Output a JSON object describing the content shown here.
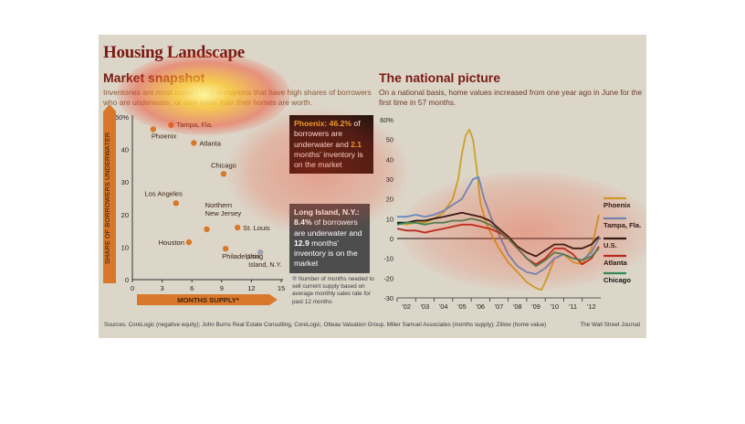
{
  "header": {
    "title": "Housing Landscape",
    "left_subtitle": "Market snapshot",
    "left_intro": "Inventories are most constrained in markets that have high shares of borrowers who are underwater, or owe more than their homes are worth.",
    "right_subtitle": "The national picture",
    "right_intro": "On a national basis, home values increased from one year ago in June for the first time in 57 months."
  },
  "callouts": {
    "phoenix_lead": "Phoenix: 46.2%",
    "phoenix_mid": " of borrowers are underwater and ",
    "phoenix_num": "2.1",
    "phoenix_tail": " months' inventory is on the market",
    "li_lead": "Long Island, N.Y.:",
    "li_num1": "8.4%",
    "li_mid": " of borrowers are underwater and ",
    "li_num2": "12.9",
    "li_tail": " months' inventory is on the market"
  },
  "footnote": "Number of months needed to sell current supply based on average monthly sales rate for past 12 months",
  "source": "Sources: CoreLogic (negative equity); John Burns Real Estate Consulting, CoreLogic, Otteau Valuation Group, Miller Samuel Associates (months supply); Zillow (home value)",
  "credit": "The Wall Street Journal",
  "colors": {
    "title": "#7a1a12",
    "orange": "#d9782a",
    "gray_point": "#9fa4ac",
    "phoenix": "#c9a227",
    "tampa": "#5b8fc9",
    "us": "#111111",
    "atlanta": "#b2261b",
    "chicago": "#2e8a5a"
  },
  "chart_data": [
    {
      "type": "scatter",
      "title": "Market snapshot",
      "xlabel": "MONTHS SUPPLY*",
      "ylabel": "SHARE OF BORROWERS UNDERWATER",
      "xlim": [
        0,
        15
      ],
      "ylim": [
        0,
        50
      ],
      "x_ticks": [
        "0",
        "3",
        "6",
        "9",
        "12",
        "15"
      ],
      "y_ticks": [
        "0",
        "10",
        "20",
        "30",
        "40",
        "50%"
      ],
      "points": [
        {
          "label": "Phoenix",
          "x": 2.1,
          "y": 46.2,
          "color": "orange"
        },
        {
          "label": "Tampa, Fla.",
          "x": 3.9,
          "y": 47.5,
          "color": "orange"
        },
        {
          "label": "Atlanta",
          "x": 6.2,
          "y": 42.0,
          "color": "orange"
        },
        {
          "label": "Chicago",
          "x": 9.2,
          "y": 32.5,
          "color": "orange"
        },
        {
          "label": "Los Angeles",
          "x": 4.4,
          "y": 23.5,
          "color": "orange"
        },
        {
          "label": "Northern New Jersey",
          "x": 7.5,
          "y": 15.5,
          "color": "orange"
        },
        {
          "label": "St. Louis",
          "x": 10.6,
          "y": 16.0,
          "color": "orange"
        },
        {
          "label": "Houston",
          "x": 5.7,
          "y": 11.5,
          "color": "orange"
        },
        {
          "label": "Philadelphia",
          "x": 9.4,
          "y": 9.5,
          "color": "orange"
        },
        {
          "label": "Long Island, N.Y.",
          "x": 12.9,
          "y": 8.4,
          "color": "gray"
        }
      ],
      "grid": false
    },
    {
      "type": "line",
      "title": "The national picture",
      "ylim": [
        -30,
        60
      ],
      "y_ticks": [
        "60%",
        "50",
        "40",
        "30",
        "20",
        "10",
        "0",
        "-10",
        "-20",
        "-30"
      ],
      "x_ticks": [
        "'02",
        "'03",
        "'04",
        "'05",
        "'06",
        "'07",
        "'08",
        "'09",
        "'10",
        "'11",
        "'12"
      ],
      "x_range": [
        2001.5,
        2012.5
      ],
      "legend_placement": "right",
      "series": [
        {
          "name": "Phoenix",
          "color": "phoenix",
          "x": [
            2001.5,
            2002,
            2002.5,
            2003,
            2003.5,
            2004,
            2004.5,
            2004.8,
            2005,
            2005.2,
            2005.4,
            2005.6,
            2005.8,
            2006,
            2006.3,
            2006.6,
            2007,
            2007.5,
            2008,
            2008.5,
            2009,
            2009.3,
            2009.6,
            2010,
            2010.5,
            2011,
            2011.5,
            2012,
            2012.4
          ],
          "y": [
            8,
            7,
            8,
            8,
            10,
            13,
            20,
            30,
            43,
            52,
            55,
            50,
            35,
            18,
            8,
            2,
            -5,
            -12,
            -17,
            -22,
            -25,
            -26,
            -20,
            -10,
            -8,
            -12,
            -13,
            -5,
            12
          ]
        },
        {
          "name": "Tampa, Fla.",
          "color": "tampa",
          "x": [
            2001.5,
            2002,
            2002.5,
            2003,
            2003.5,
            2004,
            2004.5,
            2005,
            2005.3,
            2005.6,
            2005.9,
            2006.2,
            2006.6,
            2007,
            2007.5,
            2008,
            2008.5,
            2009,
            2009.5,
            2010,
            2010.5,
            2011,
            2011.5,
            2012,
            2012.4
          ],
          "y": [
            11,
            11,
            12,
            11,
            12,
            14,
            17,
            20,
            25,
            30,
            31,
            20,
            10,
            2,
            -8,
            -14,
            -17,
            -18,
            -15,
            -10,
            -8,
            -10,
            -11,
            -7,
            0
          ]
        },
        {
          "name": "U.S.",
          "color": "us",
          "x": [
            2001.5,
            2002,
            2002.5,
            2003,
            2003.5,
            2004,
            2004.5,
            2005,
            2005.5,
            2006,
            2006.5,
            2007,
            2007.5,
            2008,
            2008.5,
            2009,
            2009.5,
            2010,
            2010.5,
            2011,
            2011.5,
            2012,
            2012.4
          ],
          "y": [
            8,
            8,
            9,
            9,
            10,
            11,
            12,
            13,
            12,
            11,
            9,
            5,
            1,
            -4,
            -7,
            -9,
            -6,
            -3,
            -3,
            -5,
            -5,
            -3,
            1
          ]
        },
        {
          "name": "Atlanta",
          "color": "atlanta",
          "x": [
            2001.5,
            2002,
            2002.5,
            2003,
            2003.5,
            2004,
            2004.5,
            2005,
            2005.5,
            2006,
            2006.5,
            2007,
            2007.5,
            2008,
            2008.5,
            2009,
            2009.5,
            2010,
            2010.5,
            2011,
            2011.5,
            2012,
            2012.4
          ],
          "y": [
            5,
            4,
            4,
            3,
            4,
            5,
            6,
            7,
            7,
            6,
            5,
            3,
            0,
            -5,
            -10,
            -13,
            -10,
            -5,
            -5,
            -8,
            -13,
            -10,
            -4
          ]
        },
        {
          "name": "Chicago",
          "color": "chicago",
          "x": [
            2001.5,
            2002,
            2002.5,
            2003,
            2003.5,
            2004,
            2004.5,
            2005,
            2005.5,
            2006,
            2006.5,
            2007,
            2007.5,
            2008,
            2008.5,
            2009,
            2009.5,
            2010,
            2010.5,
            2011,
            2011.5,
            2012,
            2012.4
          ],
          "y": [
            7,
            8,
            8,
            7,
            8,
            8,
            9,
            9,
            10,
            9,
            7,
            4,
            0,
            -5,
            -10,
            -14,
            -11,
            -7,
            -8,
            -10,
            -11,
            -9,
            -5
          ]
        }
      ]
    }
  ]
}
